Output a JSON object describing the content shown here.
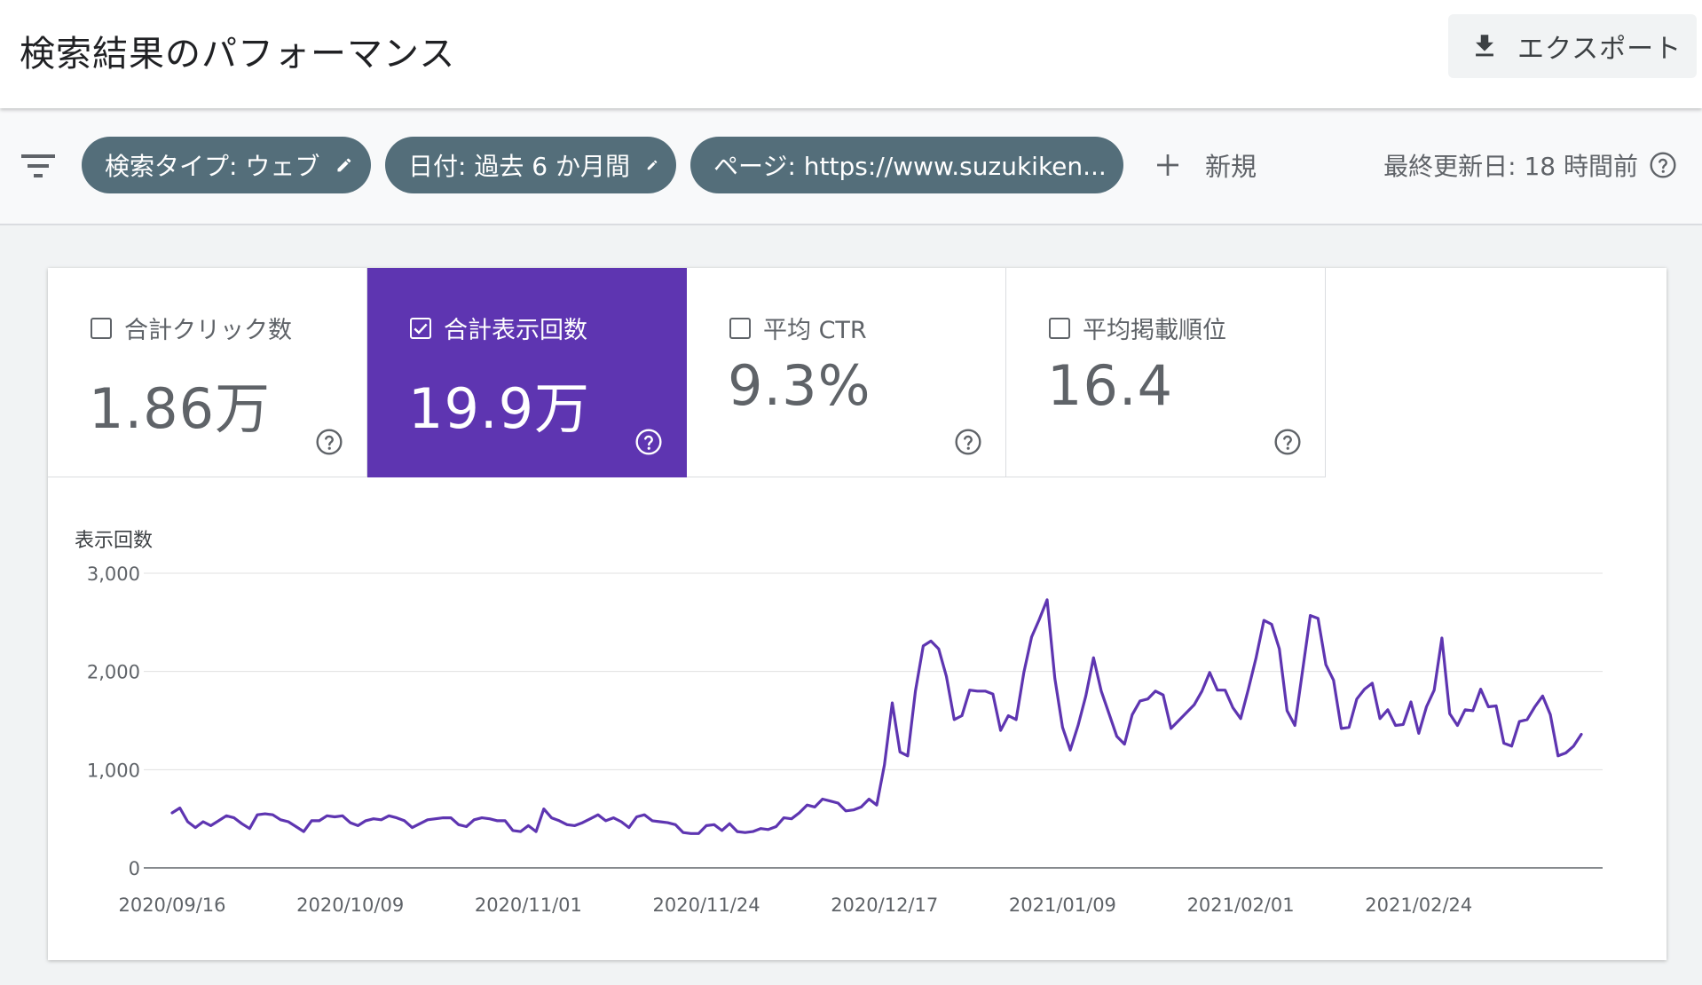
{
  "header": {
    "title": "検索結果のパフォーマンス",
    "export_label": "エクスポート"
  },
  "filters": {
    "chips": [
      {
        "label": "検索タイプ: ウェブ",
        "action": "edit"
      },
      {
        "label": "日付: 過去 6 か月間",
        "action": "edit"
      },
      {
        "label": "ページ: https://www.suzukiken...",
        "action": "remove"
      }
    ],
    "new_label": "新規",
    "last_updated": "最終更新日: 18 時間前"
  },
  "metrics": [
    {
      "label": "合計クリック数",
      "value": "1.86万",
      "checked": false
    },
    {
      "label": "合計表示回数",
      "value": "19.9万",
      "checked": true
    },
    {
      "label": "平均 CTR",
      "value": "9.3%",
      "checked": false
    },
    {
      "label": "平均掲載順位",
      "value": "16.4",
      "checked": false
    }
  ],
  "colors": {
    "accent": "#5e35b1",
    "chip": "#546e7a",
    "line": "#5e35b1"
  },
  "chart_data": {
    "type": "line",
    "ylabel": "表示回数",
    "ylim": [
      0,
      3000
    ],
    "yticks": [
      0,
      1000,
      2000,
      3000
    ],
    "ytick_labels": [
      "0",
      "1,000",
      "2,000",
      "3,000"
    ],
    "x_tick_labels": [
      "2020/09/16",
      "2020/10/09",
      "2020/11/01",
      "2020/11/24",
      "2020/12/17",
      "2021/01/09",
      "2021/02/01",
      "2021/02/24"
    ],
    "x_start": "2020/09/16",
    "x_end": "2021/03/15",
    "grid": true,
    "series": [
      {
        "values": [
          560,
          610,
          470,
          410,
          470,
          430,
          480,
          530,
          510,
          450,
          400,
          540,
          550,
          540,
          490,
          470,
          420,
          370,
          480,
          480,
          530,
          520,
          530,
          460,
          430,
          480,
          500,
          490,
          530,
          510,
          480,
          410,
          450,
          490,
          500,
          510,
          510,
          440,
          420,
          490,
          510,
          500,
          480,
          480,
          380,
          370,
          430,
          370,
          600,
          510,
          480,
          440,
          430,
          460,
          500,
          540,
          480,
          510,
          470,
          410,
          520,
          540,
          480,
          470,
          460,
          440,
          360,
          350,
          350,
          430,
          440,
          380,
          450,
          370,
          360,
          370,
          400,
          390,
          420,
          510,
          500,
          560,
          640,
          620,
          700,
          680,
          660,
          580,
          590,
          620,
          700,
          640,
          1050,
          1680,
          1180,
          1140,
          1800,
          2260,
          2310,
          2230,
          1950,
          1510,
          1550,
          1810,
          1800,
          1800,
          1770,
          1400,
          1550,
          1510,
          1990,
          2350,
          2530,
          2730,
          1930,
          1430,
          1200,
          1450,
          1750,
          2140,
          1800,
          1570,
          1340,
          1260,
          1560,
          1700,
          1720,
          1800,
          1760,
          1420,
          1500,
          1580,
          1660,
          1800,
          1990,
          1810,
          1810,
          1630,
          1520,
          1820,
          2140,
          2520,
          2480,
          2230,
          1600,
          1450,
          2010,
          2570,
          2540,
          2070,
          1910,
          1420,
          1430,
          1720,
          1820,
          1880,
          1520,
          1610,
          1450,
          1460,
          1690,
          1370,
          1640,
          1810,
          2340,
          1570,
          1450,
          1610,
          1600,
          1820,
          1640,
          1650,
          1270,
          1240,
          1490,
          1510,
          1640,
          1750,
          1560,
          1140,
          1170,
          1240,
          1360
        ]
      }
    ]
  }
}
